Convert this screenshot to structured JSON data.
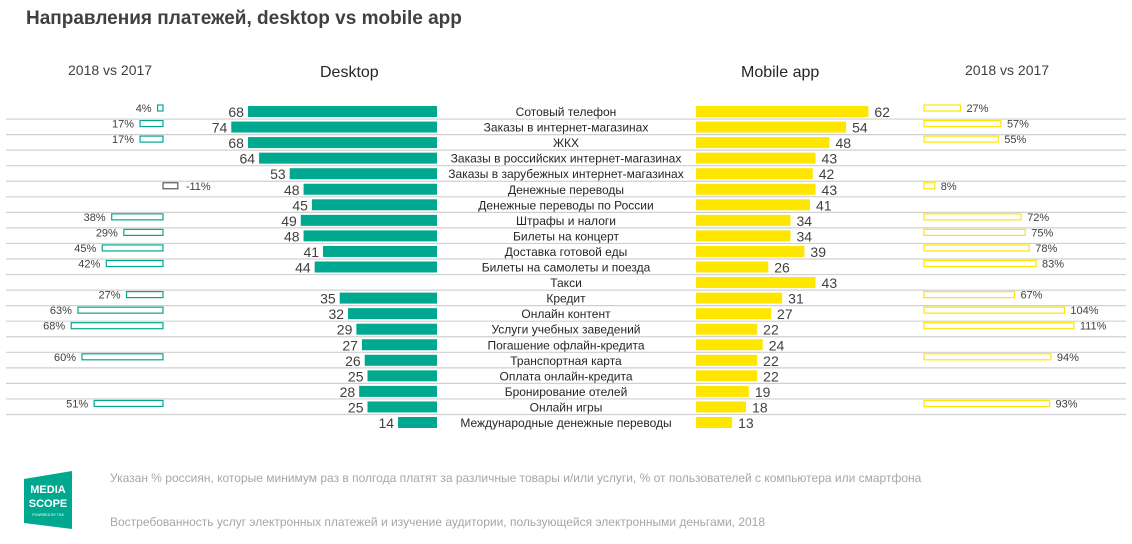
{
  "title": "Направления платежей, desktop vs mobile app",
  "headers": {
    "left_change": "2018 vs 2017",
    "desktop": "Desktop",
    "mobile": "Mobile app",
    "right_change": "2018 vs 2017"
  },
  "colors": {
    "desktop": "#00a88f",
    "mobile": "#ffe600",
    "negative_outline": "#595959",
    "gridline": "#d0d0d0"
  },
  "chart_data": {
    "type": "bar",
    "title": "Направления платежей, desktop vs mobile app",
    "categories": [
      "Сотовый телефон",
      "Заказы в интернет-магазинах",
      "ЖКХ",
      "Заказы в российских интернет-магазинах",
      "Заказы в зарубежных интернет-магазинах",
      "Денежные переводы",
      "Денежные переводы по России",
      "Штрафы и налоги",
      "Билеты на концерт",
      "Доставка готовой еды",
      "Билеты на самолеты и поезда",
      "Такси",
      "Кредит",
      "Онлайн контент",
      "Услуги учебных заведений",
      "Погашение офлайн-кредита",
      "Транспортная карта",
      "Оплата онлайн-кредита",
      "Бронирование отелей",
      "Онлайн игры",
      "Международные денежные переводы"
    ],
    "series": [
      {
        "name": "Desktop",
        "values": [
          68,
          74,
          68,
          64,
          53,
          48,
          45,
          49,
          48,
          41,
          44,
          null,
          35,
          32,
          29,
          27,
          26,
          25,
          28,
          25,
          14
        ]
      },
      {
        "name": "Mobile app",
        "values": [
          62,
          54,
          48,
          43,
          42,
          43,
          41,
          34,
          34,
          39,
          26,
          43,
          31,
          27,
          22,
          24,
          22,
          22,
          19,
          18,
          13
        ]
      },
      {
        "name": "Desktop 2018 vs 2017, %",
        "values": [
          4,
          17,
          17,
          null,
          null,
          -11,
          null,
          38,
          29,
          45,
          42,
          null,
          27,
          63,
          68,
          null,
          60,
          null,
          null,
          51,
          null
        ]
      },
      {
        "name": "Mobile app 2018 vs 2017, %",
        "values": [
          27,
          57,
          55,
          null,
          null,
          8,
          null,
          72,
          75,
          78,
          83,
          null,
          67,
          104,
          111,
          null,
          94,
          null,
          null,
          93,
          null
        ]
      }
    ],
    "xlabel": "",
    "ylabel": "",
    "grid": "horizontal row separators",
    "legend": "column headers at top"
  },
  "footer": {
    "note": "Указан % россиян, которые минимум раз в полгода платят за различные товары и/или услуги, % от пользователей с компьютера или смартфона",
    "source": "Востребованность услуг электронных платежей и изучение аудитории, пользующейся электронными деньгами, 2018"
  },
  "logo": {
    "line1": "MEDIA",
    "line2": "SCOPE",
    "tagline": "POWERED BY TNS"
  }
}
